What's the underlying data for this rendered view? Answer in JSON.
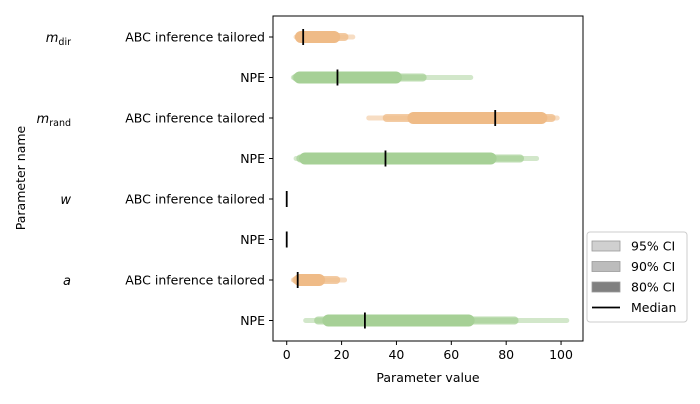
{
  "chart_data": {
    "type": "interval",
    "xlabel": "Parameter value",
    "ylabel": "Parameter name",
    "xlim": [
      -5,
      108
    ],
    "xticks": [
      0,
      20,
      40,
      60,
      80,
      100
    ],
    "colors": {
      "ABC inference tailored": "#efbb87",
      "NPE": "#a6d096"
    },
    "legend": {
      "placement": "right",
      "items": [
        {
          "label": "95% CI",
          "color": "#d0d0d0"
        },
        {
          "label": "90% CI",
          "color": "#bcbcbc"
        },
        {
          "label": "80% CI",
          "color": "#808080"
        },
        {
          "label": "Median",
          "color": "#000000"
        }
      ]
    },
    "params": [
      {
        "base": "m",
        "sub": "dir"
      },
      {
        "base": "m",
        "sub": "rand"
      },
      {
        "base": "w",
        "sub": ""
      },
      {
        "base": "a",
        "sub": ""
      }
    ],
    "rows": [
      {
        "param": 0,
        "method": "ABC inference tailored",
        "ci95": [
          2.5,
          25
        ],
        "ci90": [
          3,
          22.5
        ],
        "ci80": [
          3,
          19.5
        ],
        "median": 6
      },
      {
        "param": 0,
        "method": "NPE",
        "ci95": [
          1.5,
          68
        ],
        "ci90": [
          2,
          51
        ],
        "ci80": [
          2.5,
          42
        ],
        "median": 18.5
      },
      {
        "param": 1,
        "method": "ABC inference tailored",
        "ci95": [
          29,
          99.5
        ],
        "ci90": [
          35,
          98
        ],
        "ci80": [
          44,
          95
        ],
        "median": 76
      },
      {
        "param": 1,
        "method": "NPE",
        "ci95": [
          2.5,
          92
        ],
        "ci90": [
          3.5,
          86.5
        ],
        "ci80": [
          4.5,
          76.5
        ],
        "median": 36
      },
      {
        "param": 2,
        "method": "ABC inference tailored",
        "ci95": [
          0,
          0
        ],
        "ci90": [
          0,
          0
        ],
        "ci80": [
          0,
          0
        ],
        "median": 0
      },
      {
        "param": 2,
        "method": "NPE",
        "ci95": [
          0,
          0
        ],
        "ci90": [
          0,
          0
        ],
        "ci80": [
          0,
          0
        ],
        "median": 0
      },
      {
        "param": 3,
        "method": "ABC inference tailored",
        "ci95": [
          1.5,
          22
        ],
        "ci90": [
          2,
          19.5
        ],
        "ci80": [
          2.5,
          14
        ],
        "median": 4
      },
      {
        "param": 3,
        "method": "NPE",
        "ci95": [
          6,
          103
        ],
        "ci90": [
          10,
          84.5
        ],
        "ci80": [
          13,
          68.5
        ],
        "median": 28.5
      }
    ]
  }
}
